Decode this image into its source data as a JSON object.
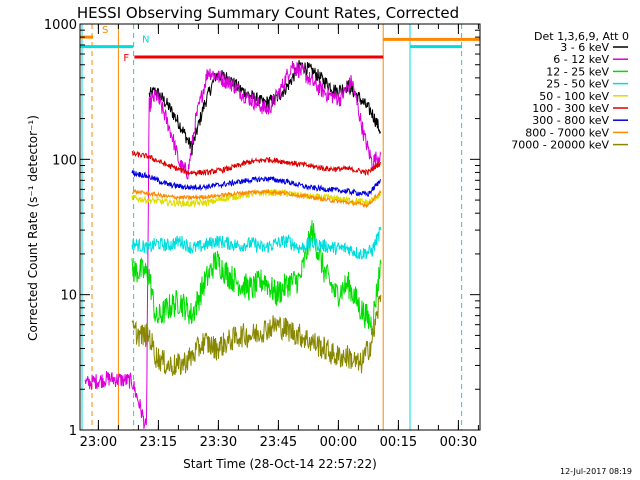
{
  "chart_data": {
    "type": "line",
    "title": "HESSI Observing Summary Count Rates, Corrected",
    "xlabel": "Start Time (28-Oct-14 22:57:22)",
    "ylabel": "Corrected Count Rate (s⁻¹ detector⁻¹)",
    "yscale": "log",
    "ylim": [
      1,
      1000
    ],
    "xlim_minutes_after_start": [
      -2,
      98
    ],
    "x_ticks": [
      {
        "label": "23:00",
        "t": 2.6
      },
      {
        "label": "23:15",
        "t": 17.6
      },
      {
        "label": "23:30",
        "t": 32.6
      },
      {
        "label": "23:45",
        "t": 47.6
      },
      {
        "label": "00:00",
        "t": 62.6
      },
      {
        "label": "00:15",
        "t": 77.6
      },
      {
        "label": "00:30",
        "t": 92.6
      }
    ],
    "y_ticks": [
      {
        "label": "1",
        "v": 1
      },
      {
        "label": "10",
        "v": 10
      },
      {
        "label": "100",
        "v": 100
      },
      {
        "label": "1000",
        "v": 1000
      }
    ],
    "legend": {
      "title": "Det 1,3,6,9, Att 0",
      "placement": "right, outside plot"
    },
    "series": [
      {
        "name": "3 - 6 keV",
        "color": "#000000",
        "x": [
          15.3,
          17,
          20,
          23,
          26,
          29,
          32,
          35,
          38,
          41,
          44,
          47,
          50,
          53,
          56,
          59,
          62,
          65,
          68,
          71,
          73.2
        ],
        "y": [
          300,
          320,
          250,
          180,
          120,
          250,
          420,
          400,
          330,
          290,
          260,
          280,
          350,
          500,
          450,
          380,
          320,
          350,
          280,
          220,
          160
        ]
      },
      {
        "name": "6 - 12 keV",
        "color": "#dd00dd",
        "x": [
          -0.7,
          5,
          11,
          13,
          14.6,
          15.3,
          17,
          19,
          21,
          23,
          25,
          27,
          30,
          33,
          36,
          39,
          42,
          45,
          48,
          51,
          54,
          57,
          60,
          63,
          66,
          69,
          71,
          73.2
        ],
        "y": [
          2.2,
          2.4,
          2.3,
          1.5,
          1.0,
          250,
          300,
          220,
          150,
          90,
          80,
          200,
          450,
          400,
          360,
          300,
          260,
          230,
          320,
          500,
          430,
          350,
          300,
          280,
          380,
          150,
          95,
          110
        ]
      },
      {
        "name": "12 - 25 keV",
        "color": "#00dd00",
        "x": [
          11,
          13,
          15.3,
          17,
          20,
          23,
          26,
          29,
          32,
          35,
          38,
          41,
          44,
          47,
          50,
          53,
          56,
          59,
          62,
          65,
          68,
          71,
          73.2
        ],
        "y": [
          15,
          15,
          14,
          6.5,
          8,
          9,
          7,
          12,
          18,
          14,
          12,
          11,
          13,
          10,
          12,
          13,
          30,
          15,
          10,
          12,
          8,
          6,
          17
        ]
      },
      {
        "name": "25 - 50 keV",
        "color": "#00dddd",
        "x": [
          11,
          13,
          15.3,
          17,
          20,
          23,
          26,
          29,
          32,
          35,
          38,
          41,
          44,
          47,
          50,
          53,
          56,
          59,
          62,
          65,
          68,
          71,
          73.2
        ],
        "y": [
          24,
          23,
          22,
          24,
          23,
          25,
          22,
          23,
          25,
          24,
          23,
          24,
          22,
          24,
          25,
          22,
          24,
          23,
          22,
          22,
          20,
          21,
          30
        ]
      },
      {
        "name": "50 - 100 keV",
        "color": "#dddd00",
        "x": [
          11,
          15,
          20,
          25,
          30,
          35,
          40,
          45,
          50,
          55,
          60,
          65,
          70,
          73.2
        ],
        "y": [
          52,
          50,
          48,
          47,
          48,
          52,
          55,
          57,
          56,
          53,
          52,
          50,
          48,
          55
        ]
      },
      {
        "name": "100 - 300 keV",
        "color": "#dd0000",
        "x": [
          11,
          15,
          20,
          25,
          30,
          35,
          40,
          45,
          50,
          55,
          60,
          65,
          70,
          73.2
        ],
        "y": [
          110,
          105,
          90,
          80,
          80,
          85,
          95,
          100,
          95,
          90,
          85,
          85,
          80,
          95
        ]
      },
      {
        "name": "300 - 800 keV",
        "color": "#0000dd",
        "x": [
          11,
          15,
          20,
          25,
          30,
          35,
          40,
          45,
          50,
          55,
          60,
          65,
          70,
          73.2
        ],
        "y": [
          80,
          75,
          65,
          62,
          63,
          66,
          70,
          72,
          68,
          62,
          60,
          58,
          55,
          70
        ]
      },
      {
        "name": "800 - 7000 keV",
        "color": "#ff8800",
        "x": [
          11,
          15,
          20,
          25,
          30,
          35,
          40,
          45,
          50,
          55,
          60,
          65,
          70,
          73.2
        ],
        "y": [
          58,
          56,
          53,
          52,
          53,
          55,
          57,
          58,
          56,
          53,
          50,
          48,
          46,
          58
        ]
      },
      {
        "name": "7000 - 20000 keV",
        "color": "#888800",
        "x": [
          11,
          13,
          15.3,
          17,
          20,
          23,
          26,
          29,
          32,
          35,
          38,
          41,
          44,
          47,
          50,
          53,
          56,
          59,
          62,
          65,
          68,
          71,
          73.2
        ],
        "y": [
          5.5,
          5,
          5,
          3.5,
          3.0,
          3.0,
          3.5,
          4.5,
          4,
          4.5,
          5,
          5,
          5.5,
          6,
          5.5,
          5,
          4.5,
          4,
          3.5,
          3.5,
          3,
          4.5,
          10
        ]
      }
    ],
    "flag_bars": [
      {
        "letter": "S",
        "color": "#ff8800",
        "y": 800,
        "segments": [
          [
            -2,
            1.3
          ]
        ]
      },
      {
        "letter": "N",
        "color": "#00dddd",
        "y": 680,
        "segments": [
          [
            -2,
            11.3
          ]
        ]
      },
      {
        "letter": "F",
        "color": "#ee0000",
        "y": 570,
        "segments": [
          [
            11.6,
            73.8
          ]
        ]
      }
    ],
    "extra_bars": [
      {
        "color": "#ff8800",
        "y": 770,
        "segments": [
          [
            73.8,
            98
          ]
        ]
      },
      {
        "color": "#00dddd",
        "y": 680,
        "segments": [
          [
            80.5,
            93.5
          ]
        ]
      }
    ],
    "vlines": [
      {
        "t": -1.5,
        "color": "#00dddd",
        "dashed": false
      },
      {
        "t": 1.0,
        "color": "#ff8800",
        "dashed": true
      },
      {
        "t": 7.6,
        "color": "#ff8800",
        "dashed": false
      },
      {
        "t": 11.4,
        "color": "#00dddd",
        "dashed": true
      },
      {
        "t": 73.8,
        "color": "#ff8800",
        "dashed": false
      },
      {
        "t": 80.5,
        "color": "#00dddd",
        "dashed": false
      },
      {
        "t": 93.4,
        "color": "#00dddd",
        "dashed": true
      }
    ]
  },
  "footer": {
    "timestamp": "12-Jul-2017 08:19"
  }
}
